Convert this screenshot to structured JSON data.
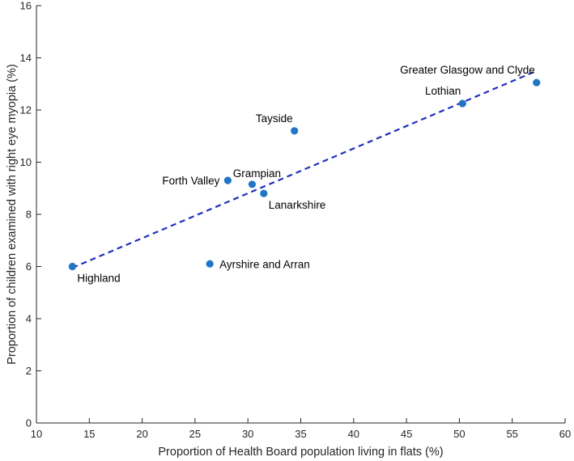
{
  "chart_data": {
    "type": "scatter",
    "title": "",
    "xlabel": "Proportion of Health Board population living in flats (%)",
    "ylabel": "Proportion of children examined with right eye myopia (%)",
    "xlim": [
      10,
      60
    ],
    "ylim": [
      0,
      16
    ],
    "xticks": [
      10,
      15,
      20,
      25,
      30,
      35,
      40,
      45,
      50,
      55,
      60
    ],
    "yticks": [
      0,
      2,
      4,
      6,
      8,
      10,
      12,
      14,
      16
    ],
    "grid": false,
    "legend": "none",
    "point_color": "#1f77c4",
    "trend_color": "#1f2fbf",
    "points": [
      {
        "label": "Highland",
        "x": 13.4,
        "y": 6.0,
        "label_pos": "below-right"
      },
      {
        "label": "Ayrshire and Arran",
        "x": 26.4,
        "y": 6.1,
        "label_pos": "right"
      },
      {
        "label": "Forth Valley",
        "x": 28.1,
        "y": 9.3,
        "label_pos": "left"
      },
      {
        "label": "Grampian",
        "x": 30.4,
        "y": 9.15,
        "label_pos": "above"
      },
      {
        "label": "Lanarkshire",
        "x": 31.5,
        "y": 8.8,
        "label_pos": "below-right"
      },
      {
        "label": "Tayside",
        "x": 34.4,
        "y": 11.2,
        "label_pos": "above-left"
      },
      {
        "label": "Lothian",
        "x": 50.3,
        "y": 12.25,
        "label_pos": "above-left"
      },
      {
        "label": "Greater Glasgow and Clyde",
        "x": 57.3,
        "y": 13.05,
        "label_pos": "above-left"
      }
    ],
    "trend_line": {
      "x": [
        13.4,
        57.3
      ],
      "y": [
        5.95,
        13.5
      ],
      "style": "dashed"
    }
  }
}
